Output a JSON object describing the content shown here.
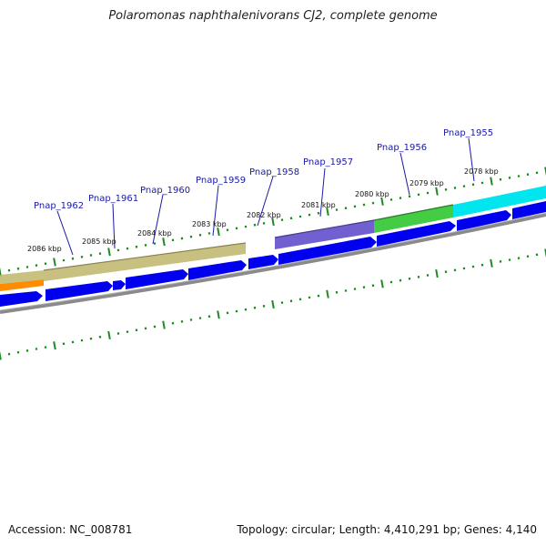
{
  "title": "Polaromonas naphthalenivorans CJ2, complete genome",
  "footer": {
    "accession": "Accession: NC_008781",
    "summary": "Topology: circular; Length: 4,410,291 bp; Genes: 4,140"
  },
  "genes": [
    "Pnap_1962",
    "Pnap_1961",
    "Pnap_1960",
    "Pnap_1959",
    "Pnap_1958",
    "Pnap_1957",
    "Pnap_1956",
    "Pnap_1955"
  ],
  "kbp_ticks": [
    "2086 kbp",
    "2085 kbp",
    "2084 kbp",
    "2083 kbp",
    "2082 kbp",
    "2081 kbp",
    "2080 kbp",
    "2079 kbp",
    "2078 kbp"
  ],
  "colors": {
    "cds_arrow": "#0000ee",
    "backbone": "#8a8a8a",
    "tick": "#1f8a1f",
    "label": "#1a1aa6",
    "cog_olive": "#c8c080",
    "cog_purple": "#6a5acd",
    "cog_green": "#44cc44",
    "cog_cyan": "#00e5ee",
    "cog_orange": "#ff8c00"
  }
}
